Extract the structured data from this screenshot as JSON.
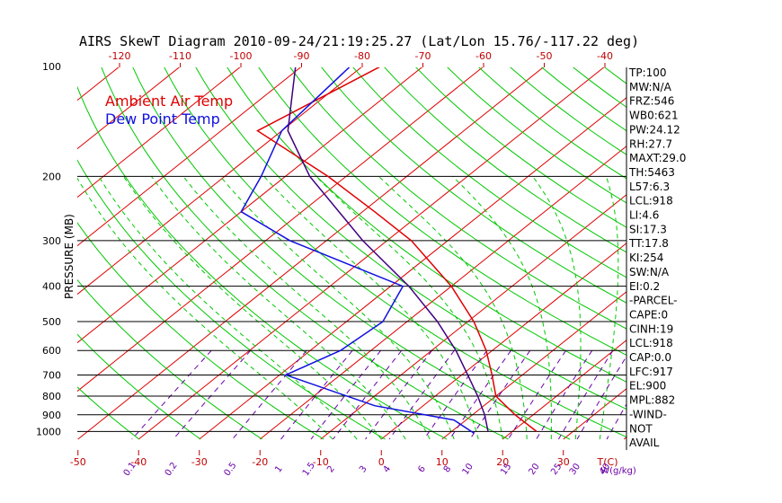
{
  "chart_data": {
    "type": "skewt",
    "title": "AIRS SkewT Diagram 2010-09-24/21:19:25.27 (Lat/Lon 15.76/-117.22 deg)",
    "ylabel": "PRESSURE (MB)",
    "pressure_ticks": [
      100,
      200,
      300,
      400,
      500,
      600,
      700,
      800,
      900,
      1000
    ],
    "pressure_range": [
      100,
      1050
    ],
    "bottom_temp_ticks": [
      "-50",
      "-40",
      "-30",
      "-20",
      "-10",
      "0",
      "10",
      "20",
      "30"
    ],
    "bottom_temp_unit": "T(C)",
    "top_temp_ticks": [
      "-120",
      "-110",
      "-100",
      "-90",
      "-80",
      "-70",
      "-60",
      "-50",
      "-40"
    ],
    "mixing_ratio_labels": [
      "0.1",
      "0.2",
      "0.5",
      "1",
      "1.5",
      "2",
      "3",
      "4",
      "6",
      "8",
      "10",
      "15",
      "20",
      "25",
      "30",
      "40"
    ],
    "mixing_ratio_unit": "W(g/kg)",
    "legend": [
      {
        "label": "Ambient Air Temp",
        "color": "#e00000"
      },
      {
        "label": "Dew Point Temp",
        "color": "#1010e0"
      }
    ],
    "series": [
      {
        "name": "Ambient Air Temp",
        "color": "#e00000",
        "points": [
          [
            100,
            -77
          ],
          [
            150,
            -84
          ],
          [
            200,
            -63
          ],
          [
            250,
            -48
          ],
          [
            300,
            -36
          ],
          [
            400,
            -20
          ],
          [
            500,
            -9
          ],
          [
            600,
            -1
          ],
          [
            700,
            5
          ],
          [
            800,
            10
          ],
          [
            900,
            17
          ],
          [
            1000,
            24
          ]
        ]
      },
      {
        "name": "Dew Point Temp",
        "color": "#1010e0",
        "points": [
          [
            100,
            -82
          ],
          [
            150,
            -80
          ],
          [
            200,
            -74
          ],
          [
            250,
            -70
          ],
          [
            300,
            -56
          ],
          [
            400,
            -28
          ],
          [
            500,
            -24
          ],
          [
            600,
            -25
          ],
          [
            700,
            -29
          ],
          [
            850,
            -8
          ],
          [
            930,
            8
          ],
          [
            1010,
            14
          ]
        ]
      },
      {
        "name": "",
        "color": "#400080",
        "points": [
          [
            100,
            -91
          ],
          [
            150,
            -79
          ],
          [
            200,
            -66
          ],
          [
            300,
            -44
          ],
          [
            400,
            -27
          ],
          [
            500,
            -15
          ],
          [
            600,
            -6
          ],
          [
            700,
            1
          ],
          [
            800,
            7
          ],
          [
            900,
            12
          ],
          [
            1000,
            16
          ]
        ]
      }
    ],
    "indices": [
      "TP:100",
      "MW:N/A",
      "FRZ:546",
      "WB0:621",
      "PW:24.12",
      "RH:27.7",
      "MAXT:29.0",
      "TH:5463",
      "L57:6.3",
      "LCL:918",
      "LI:4.6",
      "SI:17.3",
      "TT:17.8",
      "KI:254",
      "SW:N/A",
      "EI:0.2",
      "-PARCEL-",
      "CAPE:0",
      "CINH:19",
      "LCL:918",
      "CAP:0.0",
      "LFC:917",
      "EL:900",
      "MPL:882",
      "-WIND-",
      "NOT",
      "AVAIL"
    ],
    "colors": {
      "dry_adiabat": "#00c800",
      "moist_adiabat": "#00c800",
      "isotherm": "#e00000",
      "mixing_ratio": "#6a00a8",
      "isobar": "#000000"
    }
  }
}
